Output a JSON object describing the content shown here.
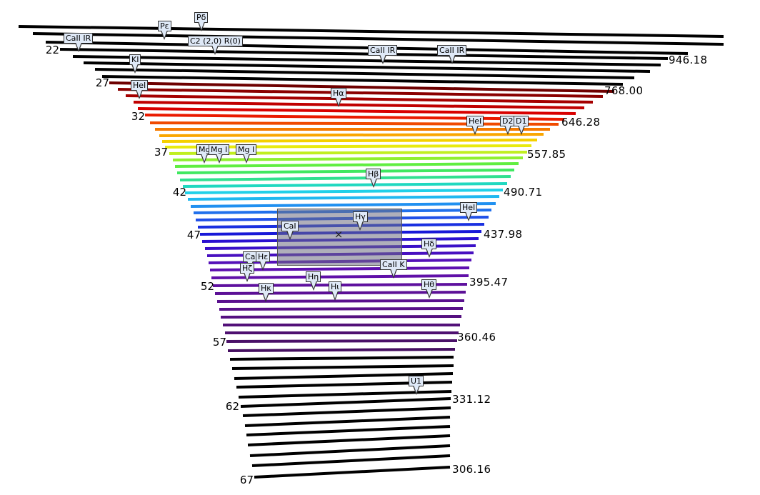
{
  "diagram": {
    "orders": [
      "22",
      "27",
      "32",
      "37",
      "42",
      "47",
      "52",
      "57",
      "62",
      "67"
    ],
    "wavelengths": [
      "946.18",
      "768.00",
      "646.28",
      "557.85",
      "490.71",
      "437.98",
      "395.47",
      "360.46",
      "331.12",
      "306.16"
    ],
    "line_labels": [
      {
        "name": "Pε",
        "text": "Pε"
      },
      {
        "name": "Pδ",
        "text": "Pδ"
      },
      {
        "name": "CaII-IR-1",
        "text": "CaII IR"
      },
      {
        "name": "C2-band",
        "text": "C2 (2,0) R(0)"
      },
      {
        "name": "CaII-IR-2",
        "text": "CaII IR"
      },
      {
        "name": "CaII-IR-3",
        "text": "CaII IR"
      },
      {
        "name": "KI",
        "text": "KI"
      },
      {
        "name": "HeI-1",
        "text": "HeI"
      },
      {
        "name": "H-alpha",
        "text": "Hα"
      },
      {
        "name": "HeI-2",
        "text": "HeI"
      },
      {
        "name": "D2",
        "text": "D2"
      },
      {
        "name": "D1",
        "text": "D1"
      },
      {
        "name": "MgI-1",
        "text": "Mg"
      },
      {
        "name": "MgI-2",
        "text": "Mg I"
      },
      {
        "name": "MgI-3",
        "text": "Mg I"
      },
      {
        "name": "H-beta",
        "text": "Hβ"
      },
      {
        "name": "HeI-3",
        "text": "HeI"
      },
      {
        "name": "H-gamma",
        "text": "Hγ"
      },
      {
        "name": "CaI",
        "text": "CaI"
      },
      {
        "name": "H-delta",
        "text": "Hδ"
      },
      {
        "name": "Ca-short",
        "text": "Ca"
      },
      {
        "name": "H-epsilon",
        "text": "Hε"
      },
      {
        "name": "H-zeta",
        "text": "Hζ"
      },
      {
        "name": "CaII-K",
        "text": "CaII K"
      },
      {
        "name": "H-eta",
        "text": "Hη"
      },
      {
        "name": "H-kappa",
        "text": "Hκ"
      },
      {
        "name": "H-iota",
        "text": "Hι"
      },
      {
        "name": "H-theta",
        "text": "Hθ"
      },
      {
        "name": "U1",
        "text": "U1"
      }
    ],
    "colors": {
      "outside_visible": "#000000",
      "callout_fill": "#dfe9f7",
      "selection_fill": "#6e6e82"
    }
  }
}
